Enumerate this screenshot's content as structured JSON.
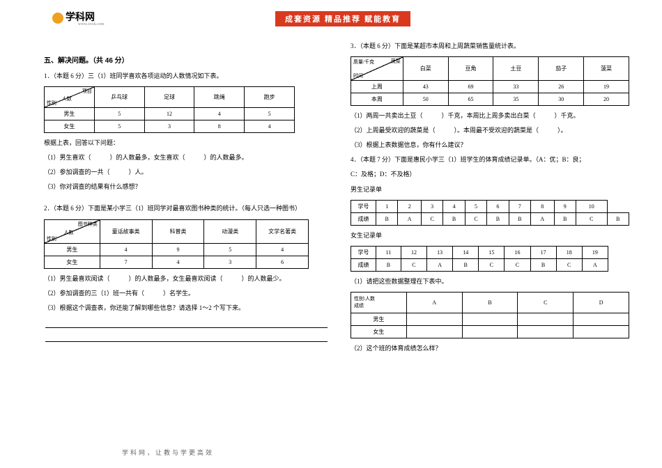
{
  "header": {
    "logo_text": "学科网",
    "logo_sub": "www.zxxk.com",
    "banner": "成套资源 精品推荐 赋能教育"
  },
  "footer": "学科网，让教与学更高效",
  "left": {
    "section_title": "五、解决问题。（共 46 分）",
    "q1": {
      "prompt": "1．（本题 6 分）三（1）班同学喜欢各项运动的人数情况如下表。",
      "diag_top": "项目",
      "diag_mid": "人数",
      "diag_bot": "性别",
      "cols": [
        "乒乓球",
        "足球",
        "跳绳",
        "跑步"
      ],
      "rows": [
        {
          "label": "男生",
          "vals": [
            "5",
            "12",
            "4",
            "5"
          ]
        },
        {
          "label": "女生",
          "vals": [
            "5",
            "3",
            "8",
            "4"
          ]
        }
      ],
      "after_title": "根据上表，回答以下问题：",
      "s1": "（1）男生喜欢（　　　）的人数最多，女生喜欢（　　　）的人数最多。",
      "s2": "（2）参加调查的一共（　　　）人。",
      "s3": "（3）你对调查的结果有什么感想？"
    },
    "q2": {
      "prompt": "2．（本题 6 分）下面是某小学三（1）班同学对最喜欢图书种类的统计。（每人只选一种图书）",
      "diag_top": "图书种类",
      "diag_mid": "人数",
      "diag_bot": "性别",
      "cols": [
        "童话故事类",
        "科普类",
        "动漫类",
        "文学名著类"
      ],
      "rows": [
        {
          "label": "男生",
          "vals": [
            "4",
            "9",
            "5",
            "4"
          ]
        },
        {
          "label": "女生",
          "vals": [
            "7",
            "4",
            "3",
            "6"
          ]
        }
      ],
      "s1": "（1）男生最喜欢阅读（　　　）的人数最多，女生最喜欢阅读（　　　）的人数最少。",
      "s2": "（2）参加调查的三（1）班一共有（　　　）名学生。",
      "s3": "（3）根据这个调查表，你还能了解到哪些信息？请选择 1～2 个写下来。"
    }
  },
  "right": {
    "q3": {
      "prompt": "3．（本题 6 分）下面是某超市本周和上周蔬菜销售量统计表。",
      "diag_top": "蔬菜",
      "diag_mid": "质量/千克",
      "diag_bot": "时间",
      "cols": [
        "白菜",
        "豆角",
        "土豆",
        "茄子",
        "菠菜"
      ],
      "rows": [
        {
          "label": "上周",
          "vals": [
            "43",
            "69",
            "33",
            "26",
            "19"
          ]
        },
        {
          "label": "本周",
          "vals": [
            "50",
            "65",
            "35",
            "30",
            "20"
          ]
        }
      ],
      "s1": "（1）两周一共卖出土豆（　　　）千克，本周比上周多卖出白菜（　　　）千克。",
      "s2": "（2）上周最受欢迎的蔬菜是（　　　）。本周最不受欢迎的蔬菜是（　　　）。",
      "s3": "（3）根据上表数据信息，你有什么建议？"
    },
    "q4": {
      "prompt_l1": "4．（本题 7 分）下面是惠民小学三（1）班学生的体育成绩记录单。（A：优；B：良；",
      "prompt_l2": "C：及格；D：不及格）",
      "boys_title": "男生记录单",
      "boys_headers": [
        "学号",
        "1",
        "2",
        "3",
        "4",
        "5",
        "6",
        "7",
        "8",
        "9",
        "10"
      ],
      "boys_row": [
        "成绩",
        "B",
        "A",
        "C",
        "B",
        "C",
        "B",
        "B",
        "A",
        "B",
        "C"
      ],
      "boys_extra": "B",
      "girls_title": "女生记录单",
      "girls_headers": [
        "学号",
        "11",
        "12",
        "13",
        "14",
        "15",
        "16",
        "17",
        "18",
        "19"
      ],
      "girls_row": [
        "成绩",
        "B",
        "C",
        "A",
        "B",
        "C",
        "C",
        "B",
        "C",
        "A"
      ],
      "s1": "（1）请把这些数据整理在下表中。",
      "sum_label": "性别\\人数\\成绩",
      "sum_cols": [
        "A",
        "B",
        "C",
        "D"
      ],
      "sum_rows": [
        "男生",
        "女生"
      ],
      "s2": "（2）这个班的体育成绩怎么样？"
    }
  }
}
